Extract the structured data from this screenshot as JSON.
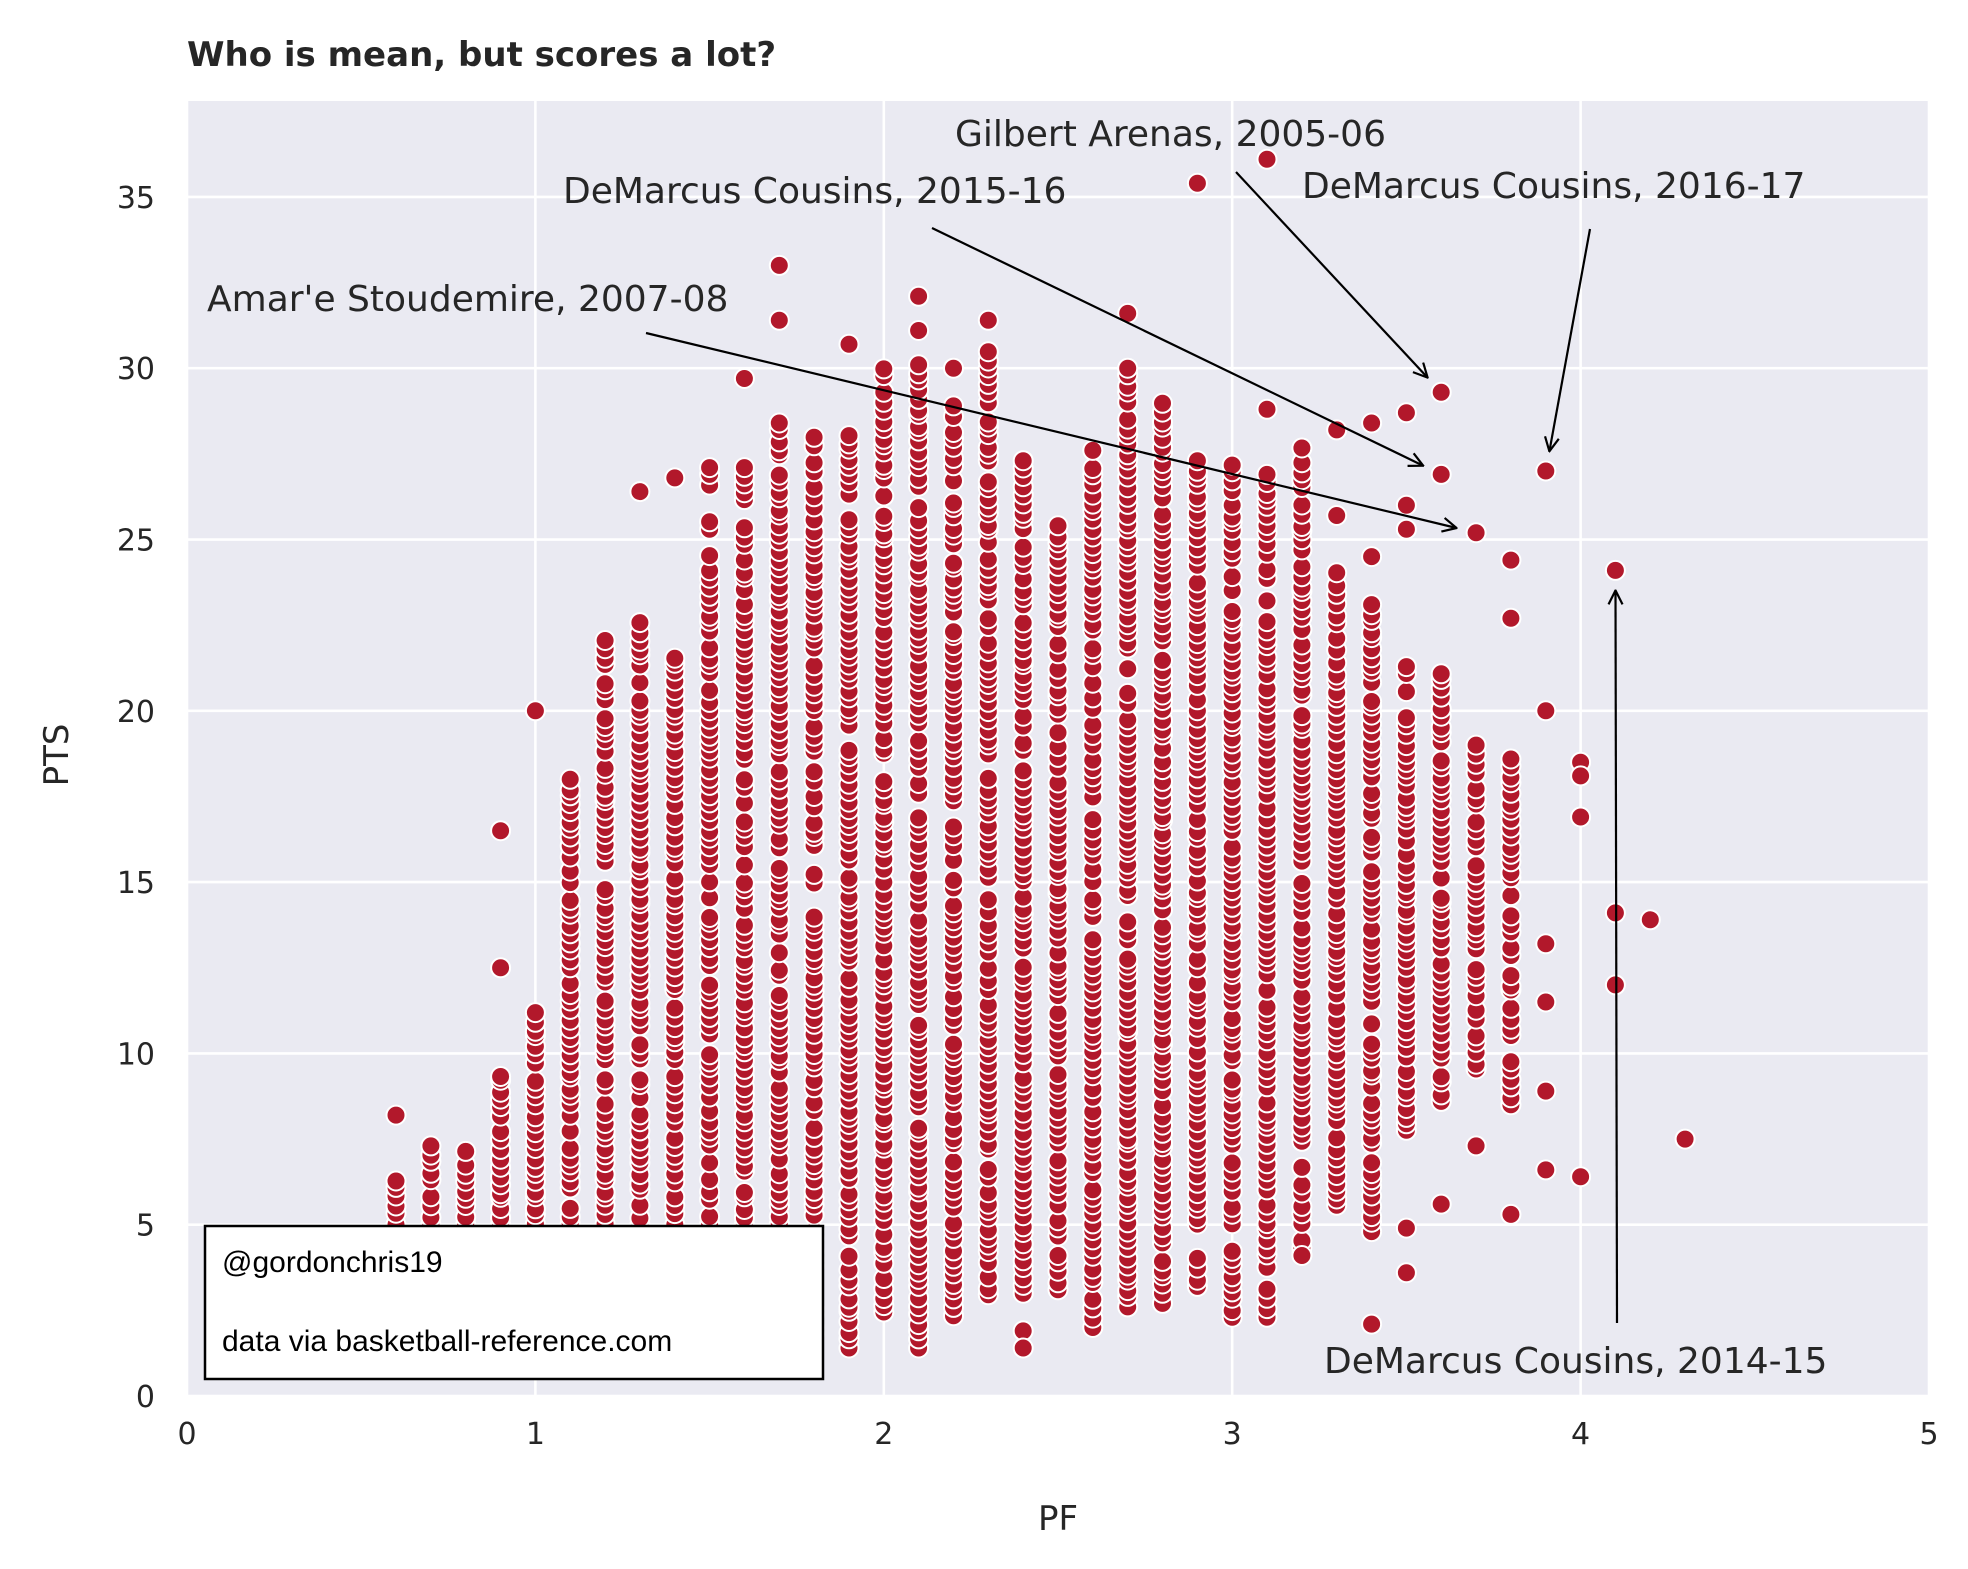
{
  "colors": {
    "plot_background": "#eaeaf2",
    "grid": "#ffffff",
    "point_fill": "#b2182b",
    "point_stroke": "#ffffff",
    "text": "#262626",
    "arrow": "#000000"
  },
  "credits": {
    "author": "@gordonchris19",
    "source": "data via basketball-reference.com"
  },
  "chart_data": {
    "type": "scatter",
    "title": "Who is mean, but scores a lot?",
    "xlabel": "PF",
    "ylabel": "PTS",
    "xlim": [
      0,
      5
    ],
    "ylim": [
      0,
      37.8
    ],
    "xticks": [
      0,
      1,
      2,
      3,
      4,
      5
    ],
    "yticks": [
      0,
      5,
      10,
      15,
      20,
      25,
      30,
      35
    ],
    "grid": true,
    "legend": "none",
    "outliers": [
      [
        0.6,
        8.2
      ],
      [
        0.9,
        16.5
      ],
      [
        0.9,
        12.5
      ],
      [
        1.0,
        20.0
      ],
      [
        1.3,
        26.4
      ],
      [
        1.4,
        26.8
      ],
      [
        1.6,
        29.7
      ],
      [
        1.7,
        33.0
      ],
      [
        1.7,
        31.4
      ],
      [
        1.9,
        30.7
      ],
      [
        2.1,
        32.1
      ],
      [
        2.1,
        31.1
      ],
      [
        2.2,
        30.0
      ],
      [
        2.3,
        31.4
      ],
      [
        2.7,
        31.6
      ],
      [
        2.9,
        35.4
      ],
      [
        3.1,
        36.1
      ],
      [
        3.1,
        28.8
      ],
      [
        3.3,
        28.2
      ],
      [
        3.4,
        28.4
      ],
      [
        3.5,
        28.7
      ],
      [
        3.6,
        29.3
      ],
      [
        3.6,
        26.9
      ],
      [
        3.7,
        25.2
      ],
      [
        3.8,
        24.4
      ],
      [
        3.8,
        22.7
      ],
      [
        3.9,
        27.0
      ],
      [
        3.9,
        20.0
      ],
      [
        3.9,
        13.2
      ],
      [
        3.9,
        11.5
      ],
      [
        3.9,
        8.9
      ],
      [
        3.9,
        6.6
      ],
      [
        4.0,
        18.5
      ],
      [
        4.0,
        18.1
      ],
      [
        4.0,
        16.9
      ],
      [
        4.0,
        6.4
      ],
      [
        4.1,
        24.1
      ],
      [
        4.1,
        14.1
      ],
      [
        4.1,
        12.0
      ],
      [
        4.2,
        13.9
      ],
      [
        4.3,
        7.5
      ],
      [
        3.4,
        2.1
      ],
      [
        3.5,
        3.6
      ],
      [
        3.5,
        4.9
      ],
      [
        3.6,
        5.6
      ],
      [
        3.7,
        7.3
      ],
      [
        3.8,
        5.3
      ],
      [
        3.2,
        4.1
      ],
      [
        2.4,
        1.9
      ],
      [
        2.4,
        1.4
      ],
      [
        3.5,
        26.0
      ],
      [
        3.5,
        25.3
      ],
      [
        3.4,
        24.5
      ],
      [
        3.3,
        25.7
      ]
    ],
    "column_bands": [
      {
        "x": 0.6,
        "ymin": 5.0,
        "ymax": 6.3
      },
      {
        "x": 0.7,
        "ymin": 5.0,
        "ymax": 7.3
      },
      {
        "x": 0.8,
        "ymin": 5.0,
        "ymax": 7.2
      },
      {
        "x": 0.9,
        "ymin": 5.0,
        "ymax": 9.4
      },
      {
        "x": 1.0,
        "ymin": 5.0,
        "ymax": 11.2
      },
      {
        "x": 1.1,
        "ymin": 5.0,
        "ymax": 18.0
      },
      {
        "x": 1.2,
        "ymin": 5.0,
        "ymax": 22.1
      },
      {
        "x": 1.3,
        "ymin": 5.0,
        "ymax": 22.6
      },
      {
        "x": 1.4,
        "ymin": 5.0,
        "ymax": 21.6
      },
      {
        "x": 1.5,
        "ymin": 5.0,
        "ymax": 27.1
      },
      {
        "x": 1.6,
        "ymin": 5.0,
        "ymax": 27.1
      },
      {
        "x": 1.7,
        "ymin": 5.0,
        "ymax": 28.4
      },
      {
        "x": 1.8,
        "ymin": 1.8,
        "ymax": 28.0
      },
      {
        "x": 1.9,
        "ymin": 1.4,
        "ymax": 28.1
      },
      {
        "x": 2.0,
        "ymin": 2.4,
        "ymax": 30.0
      },
      {
        "x": 2.1,
        "ymin": 1.4,
        "ymax": 30.1
      },
      {
        "x": 2.2,
        "ymin": 2.3,
        "ymax": 28.9
      },
      {
        "x": 2.3,
        "ymin": 2.9,
        "ymax": 30.5
      },
      {
        "x": 2.4,
        "ymin": 3.0,
        "ymax": 27.3
      },
      {
        "x": 2.5,
        "ymin": 3.1,
        "ymax": 25.4
      },
      {
        "x": 2.6,
        "ymin": 2.0,
        "ymax": 27.6
      },
      {
        "x": 2.7,
        "ymin": 2.6,
        "ymax": 30.0
      },
      {
        "x": 2.8,
        "ymin": 2.7,
        "ymax": 29.0
      },
      {
        "x": 2.9,
        "ymin": 3.2,
        "ymax": 27.3
      },
      {
        "x": 3.0,
        "ymin": 2.3,
        "ymax": 27.2
      },
      {
        "x": 3.1,
        "ymin": 2.3,
        "ymax": 26.9
      },
      {
        "x": 3.2,
        "ymin": 4.1,
        "ymax": 27.7
      },
      {
        "x": 3.3,
        "ymin": 5.5,
        "ymax": 24.1
      },
      {
        "x": 3.4,
        "ymin": 4.8,
        "ymax": 23.1
      },
      {
        "x": 3.5,
        "ymin": 7.7,
        "ymax": 21.3
      },
      {
        "x": 3.6,
        "ymin": 8.6,
        "ymax": 21.1
      },
      {
        "x": 3.7,
        "ymin": 9.5,
        "ymax": 19.0
      },
      {
        "x": 3.8,
        "ymin": 8.5,
        "ymax": 18.6
      }
    ],
    "annotations": [
      {
        "text": "Gilbert Arenas, 2005-06",
        "point": [
          3.6,
          29.3
        ]
      },
      {
        "text": "DeMarcus Cousins, 2015-16",
        "point": [
          3.6,
          26.9
        ]
      },
      {
        "text": "DeMarcus Cousins, 2016-17",
        "point": [
          3.9,
          27.0
        ]
      },
      {
        "text": "Amar'e Stoudemire, 2007-08",
        "point": [
          3.7,
          25.2
        ]
      },
      {
        "text": "DeMarcus Cousins, 2014-15",
        "point": [
          4.1,
          24.1
        ]
      }
    ]
  }
}
